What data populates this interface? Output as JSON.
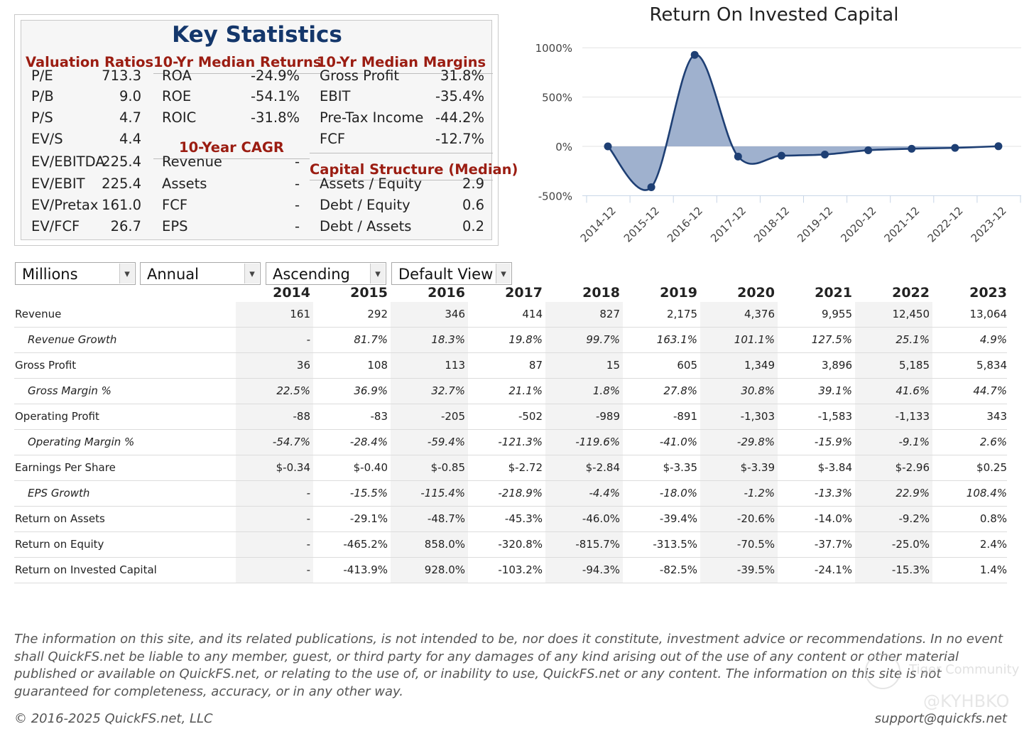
{
  "key_stats": {
    "title": "Key Statistics",
    "valuation": {
      "heading": "Valuation Ratios",
      "rows": [
        {
          "label": "P/E",
          "value": "713.3"
        },
        {
          "label": "P/B",
          "value": "9.0"
        },
        {
          "label": "P/S",
          "value": "4.7"
        },
        {
          "label": "EV/S",
          "value": "4.4"
        },
        {
          "label": "EV/EBITDA",
          "value": "225.4"
        },
        {
          "label": "EV/EBIT",
          "value": "225.4"
        },
        {
          "label": "EV/Pretax",
          "value": "161.0"
        },
        {
          "label": "EV/FCF",
          "value": "26.7"
        }
      ]
    },
    "returns": {
      "heading": "10-Yr Median Returns",
      "rows": [
        {
          "label": "ROA",
          "value": "-24.9%"
        },
        {
          "label": "ROE",
          "value": "-54.1%"
        },
        {
          "label": "ROIC",
          "value": "-31.8%"
        }
      ]
    },
    "cagr": {
      "heading": "10-Year CAGR",
      "rows": [
        {
          "label": "Revenue",
          "value": "-"
        },
        {
          "label": "Assets",
          "value": "-"
        },
        {
          "label": "FCF",
          "value": "-"
        },
        {
          "label": "EPS",
          "value": "-"
        }
      ]
    },
    "margins": {
      "heading": "10-Yr Median Margins",
      "rows": [
        {
          "label": "Gross Profit",
          "value": "31.8%"
        },
        {
          "label": "EBIT",
          "value": "-35.4%"
        },
        {
          "label": "Pre-Tax Income",
          "value": "-44.2%"
        },
        {
          "label": "FCF",
          "value": "-12.7%"
        }
      ]
    },
    "capital": {
      "heading": "Capital Structure (Median)",
      "rows": [
        {
          "label": "Assets / Equity",
          "value": "2.9"
        },
        {
          "label": "Debt / Equity",
          "value": "0.6"
        },
        {
          "label": "Debt / Assets",
          "value": "0.2"
        }
      ]
    }
  },
  "chart_data": {
    "type": "area",
    "title": "Return On Invested Capital",
    "x": [
      "2014-12",
      "2015-12",
      "2016-12",
      "2017-12",
      "2018-12",
      "2019-12",
      "2020-12",
      "2021-12",
      "2022-12",
      "2023-12"
    ],
    "series": [
      {
        "values": [
          0,
          -413.9,
          928.0,
          -103.2,
          -94.3,
          -82.5,
          -39.5,
          -24.1,
          -15.3,
          1.4
        ]
      }
    ],
    "yticks": [
      "1000%",
      "500%",
      "0%",
      "-500%"
    ],
    "ylim": [
      -500,
      1000
    ],
    "grid": true,
    "color": "#1e3f74",
    "fill": "#9aadcb"
  },
  "controls": {
    "units": "Millions",
    "period": "Annual",
    "order": "Ascending",
    "view": "Default View"
  },
  "table": {
    "years": [
      "2014",
      "2015",
      "2016",
      "2017",
      "2018",
      "2019",
      "2020",
      "2021",
      "2022",
      "2023"
    ],
    "rows": [
      {
        "label": "Revenue",
        "italic": false,
        "values": [
          "161",
          "292",
          "346",
          "414",
          "827",
          "2,175",
          "4,376",
          "9,955",
          "12,450",
          "13,064"
        ]
      },
      {
        "label": "Revenue Growth",
        "italic": true,
        "values": [
          "-",
          "81.7%",
          "18.3%",
          "19.8%",
          "99.7%",
          "163.1%",
          "101.1%",
          "127.5%",
          "25.1%",
          "4.9%"
        ]
      },
      {
        "label": "Gross Profit",
        "italic": false,
        "values": [
          "36",
          "108",
          "113",
          "87",
          "15",
          "605",
          "1,349",
          "3,896",
          "5,185",
          "5,834"
        ]
      },
      {
        "label": "Gross Margin %",
        "italic": true,
        "values": [
          "22.5%",
          "36.9%",
          "32.7%",
          "21.1%",
          "1.8%",
          "27.8%",
          "30.8%",
          "39.1%",
          "41.6%",
          "44.7%"
        ]
      },
      {
        "label": "Operating Profit",
        "italic": false,
        "values": [
          "-88",
          "-83",
          "-205",
          "-502",
          "-989",
          "-891",
          "-1,303",
          "-1,583",
          "-1,133",
          "343"
        ]
      },
      {
        "label": "Operating Margin %",
        "italic": true,
        "values": [
          "-54.7%",
          "-28.4%",
          "-59.4%",
          "-121.3%",
          "-119.6%",
          "-41.0%",
          "-29.8%",
          "-15.9%",
          "-9.1%",
          "2.6%"
        ]
      },
      {
        "label": "Earnings Per Share",
        "italic": false,
        "values": [
          "$-0.34",
          "$-0.40",
          "$-0.85",
          "$-2.72",
          "$-2.84",
          "$-3.35",
          "$-3.39",
          "$-3.84",
          "$-2.96",
          "$0.25"
        ]
      },
      {
        "label": "EPS Growth",
        "italic": true,
        "values": [
          "-",
          "-15.5%",
          "-115.4%",
          "-218.9%",
          "-4.4%",
          "-18.0%",
          "-1.2%",
          "-13.3%",
          "22.9%",
          "108.4%"
        ]
      },
      {
        "label": "Return on Assets",
        "italic": false,
        "values": [
          "-",
          "-29.1%",
          "-48.7%",
          "-45.3%",
          "-46.0%",
          "-39.4%",
          "-20.6%",
          "-14.0%",
          "-9.2%",
          "0.8%"
        ]
      },
      {
        "label": "Return on Equity",
        "italic": false,
        "values": [
          "-",
          "-465.2%",
          "858.0%",
          "-320.8%",
          "-815.7%",
          "-313.5%",
          "-70.5%",
          "-37.7%",
          "-25.0%",
          "2.4%"
        ]
      },
      {
        "label": "Return on Invested Capital",
        "italic": false,
        "values": [
          "-",
          "-413.9%",
          "928.0%",
          "-103.2%",
          "-94.3%",
          "-82.5%",
          "-39.5%",
          "-24.1%",
          "-15.3%",
          "1.4%"
        ]
      }
    ]
  },
  "footer": {
    "disclaimer": "The information on this site, and its related publications, is not intended to be, nor does it constitute, investment advice or recommendations. In no event shall QuickFS.net be liable to any member, guest, or third party for any damages of any kind arising out of the use of any content or other material published or available on QuickFS.net, or relating to the use of, or inability to use, QuickFS.net or any content. The information on this site is not guaranteed for completeness, accuracy, or in any other way.",
    "copyright": "© 2016-2025 QuickFS.net, LLC",
    "support": "support@quickfs.net"
  },
  "watermark": {
    "brand": "Tiger Community",
    "handle": "@KYHBKO"
  }
}
